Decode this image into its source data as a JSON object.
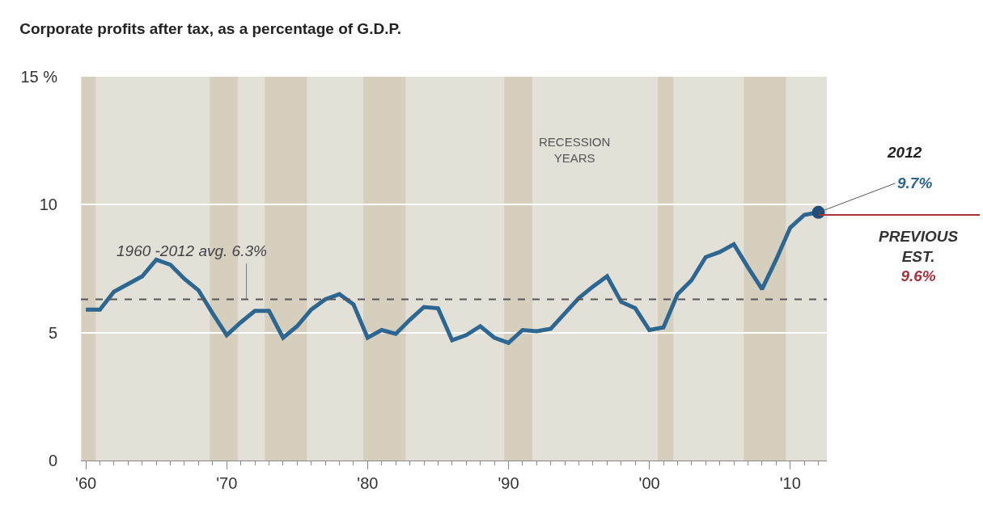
{
  "chart_data": {
    "type": "line",
    "title": "Corporate profits after tax, as a percentage of G.D.P.",
    "x": [
      1960,
      1961,
      1962,
      1963,
      1964,
      1965,
      1966,
      1967,
      1968,
      1969,
      1970,
      1971,
      1972,
      1973,
      1974,
      1975,
      1976,
      1977,
      1978,
      1979,
      1980,
      1981,
      1982,
      1983,
      1984,
      1985,
      1986,
      1987,
      1988,
      1989,
      1990,
      1991,
      1992,
      1993,
      1994,
      1995,
      1996,
      1997,
      1998,
      1999,
      2000,
      2001,
      2002,
      2003,
      2004,
      2005,
      2006,
      2007,
      2008,
      2009,
      2010,
      2011,
      2012
    ],
    "series": [
      {
        "color": "#2d6690",
        "values": [
          5.9,
          5.9,
          6.6,
          6.9,
          7.2,
          7.85,
          7.65,
          7.1,
          6.65,
          5.75,
          4.9,
          5.4,
          5.85,
          5.85,
          4.8,
          5.25,
          5.9,
          6.3,
          6.5,
          6.1,
          4.8,
          5.1,
          4.95,
          5.5,
          6.0,
          5.95,
          4.7,
          4.9,
          5.25,
          4.8,
          4.6,
          5.1,
          5.05,
          5.15,
          5.75,
          6.35,
          6.8,
          7.2,
          6.2,
          5.95,
          5.1,
          5.2,
          6.5,
          7.05,
          7.95,
          8.15,
          8.45,
          7.55,
          6.7,
          7.85,
          9.1,
          9.6,
          9.7
        ],
        "value_labels": [
          null,
          null,
          null,
          null,
          null,
          null,
          null,
          null,
          null,
          null,
          null,
          null,
          null,
          null,
          null,
          null,
          null,
          null,
          null,
          null,
          null,
          null,
          null,
          null,
          null,
          null,
          null,
          null,
          null,
          null,
          null,
          null,
          null,
          null,
          null,
          null,
          null,
          null,
          null,
          null,
          null,
          null,
          null,
          null,
          null,
          null,
          null,
          null,
          null,
          null,
          null,
          null,
          "9.7%"
        ]
      }
    ],
    "xlim": [
      1959.65,
      2012.6
    ],
    "xticks": [
      {
        "value": 1960,
        "label": "'60"
      },
      {
        "value": 1970,
        "label": "'70"
      },
      {
        "value": 1980,
        "label": "'80"
      },
      {
        "value": 1990,
        "label": "'90"
      },
      {
        "value": 2000,
        "label": "'00"
      },
      {
        "value": 2010,
        "label": "'10"
      },
      {
        "value": 1961,
        "label": null
      },
      {
        "value": 1962,
        "label": null
      },
      {
        "value": 1963,
        "label": null
      },
      {
        "value": 1964,
        "label": null
      },
      {
        "value": 1965,
        "label": null
      },
      {
        "value": 1966,
        "label": null
      },
      {
        "value": 1967,
        "label": null
      },
      {
        "value": 1968,
        "label": null
      },
      {
        "value": 1969,
        "label": null
      },
      {
        "value": 1971,
        "label": null
      },
      {
        "value": 1972,
        "label": null
      },
      {
        "value": 1973,
        "label": null
      },
      {
        "value": 1974,
        "label": null
      },
      {
        "value": 1975,
        "label": null
      },
      {
        "value": 1976,
        "label": null
      },
      {
        "value": 1977,
        "label": null
      },
      {
        "value": 1978,
        "label": null
      },
      {
        "value": 1979,
        "label": null
      },
      {
        "value": 1981,
        "label": null
      },
      {
        "value": 1982,
        "label": null
      },
      {
        "value": 1983,
        "label": null
      },
      {
        "value": 1984,
        "label": null
      },
      {
        "value": 1985,
        "label": null
      },
      {
        "value": 1986,
        "label": null
      },
      {
        "value": 1987,
        "label": null
      },
      {
        "value": 1988,
        "label": null
      },
      {
        "value": 1989,
        "label": null
      },
      {
        "value": 1991,
        "label": null
      },
      {
        "value": 1992,
        "label": null
      },
      {
        "value": 1993,
        "label": null
      },
      {
        "value": 1994,
        "label": null
      },
      {
        "value": 1995,
        "label": null
      },
      {
        "value": 1996,
        "label": null
      },
      {
        "value": 1997,
        "label": null
      },
      {
        "value": 1998,
        "label": null
      },
      {
        "value": 1999,
        "label": null
      },
      {
        "value": 2001,
        "label": null
      },
      {
        "value": 2002,
        "label": null
      },
      {
        "value": 2003,
        "label": null
      },
      {
        "value": 2004,
        "label": null
      },
      {
        "value": 2005,
        "label": null
      },
      {
        "value": 2006,
        "label": null
      },
      {
        "value": 2007,
        "label": null
      },
      {
        "value": 2008,
        "label": null
      },
      {
        "value": 2009,
        "label": null
      },
      {
        "value": 2011,
        "label": null
      },
      {
        "value": 2012,
        "label": null
      }
    ],
    "ylim": [
      0,
      15
    ],
    "yticks": [
      0,
      5,
      10,
      {
        "value": 15,
        "label": "15 %"
      }
    ],
    "grid": "y",
    "line_style": "solid",
    "ref_lines": [
      {
        "axis": "y",
        "value": 6.3,
        "label": "1960 -2012 avg. 6.3%",
        "color": "#555555",
        "line_style": "dashed"
      },
      {
        "axis": "y",
        "value": 9.6,
        "label": "PREVIOUS\nEST.\n9.6%",
        "color": "#a8323e",
        "line_style": "solid"
      }
    ],
    "bands": [
      {
        "axis": "x",
        "from": 1959.7,
        "to": 1960.7,
        "color": "#d6cfbd"
      },
      {
        "axis": "x",
        "from": 1968.8,
        "to": 1970.8,
        "color": "#d6cfbd"
      },
      {
        "axis": "x",
        "from": 1972.7,
        "to": 1975.7,
        "color": "#d6cfbd"
      },
      {
        "axis": "x",
        "from": 1979.7,
        "to": 1982.7,
        "color": "#d6cfbd"
      },
      {
        "axis": "x",
        "from": 1989.7,
        "to": 1991.7,
        "color": "#d6cfbd"
      },
      {
        "axis": "x",
        "from": 2000.6,
        "to": 2001.7,
        "color": "#d6cfbd"
      },
      {
        "axis": "x",
        "from": 2006.7,
        "to": 2009.7,
        "color": "#d6cfbd"
      }
    ],
    "annotations": [
      "RECESSION\nYEARS",
      "2012"
    ]
  }
}
